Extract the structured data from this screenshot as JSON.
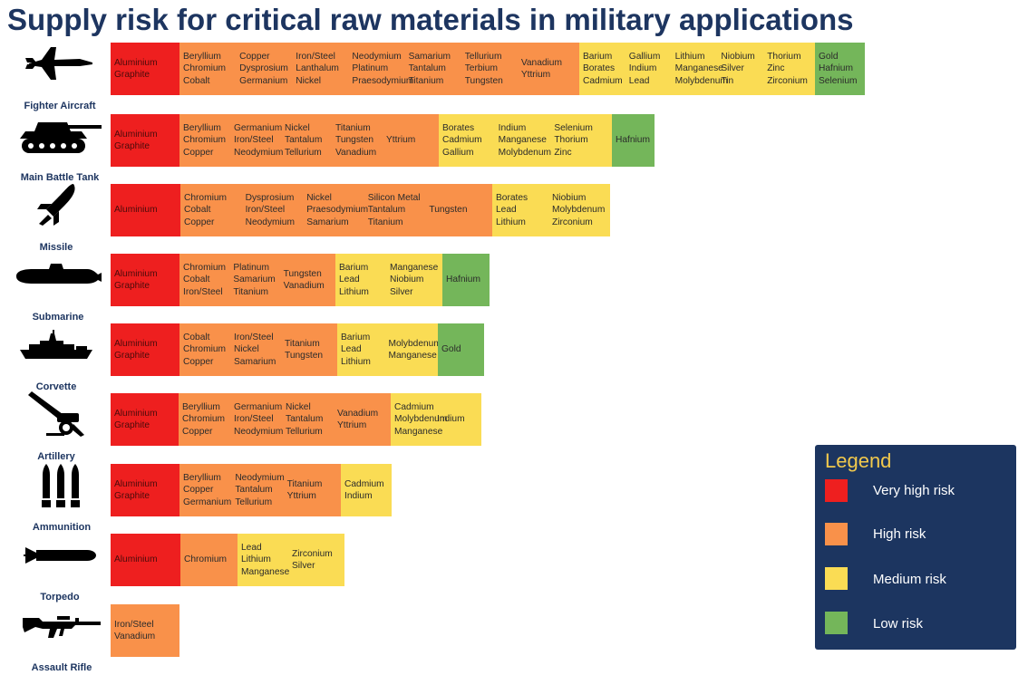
{
  "title": "Supply risk for critical raw materials in military applications",
  "risk_colors": {
    "very_high": "#ee1f1f",
    "high": "#f9914a",
    "medium": "#fadc54",
    "low": "#74b65a"
  },
  "legend": {
    "title": "Legend",
    "items": [
      {
        "risk": "very_high",
        "label": "Very high risk"
      },
      {
        "risk": "high",
        "label": "High risk"
      },
      {
        "risk": "medium",
        "label": "Medium risk"
      },
      {
        "risk": "low",
        "label": "Low risk"
      }
    ]
  },
  "rows": [
    {
      "label": "Fighter Aircraft",
      "icon": "fighter-jet-icon",
      "segments": [
        {
          "risk": "very_high",
          "columns": [
            [
              "Aluminium",
              "Graphite"
            ]
          ]
        },
        {
          "risk": "high",
          "columns": [
            [
              "Beryllium",
              "Chromium",
              "Cobalt"
            ],
            [
              "Copper",
              "Dysprosium",
              "Germanium"
            ],
            [
              "Iron/Steel",
              "Lanthalum",
              "Nickel"
            ],
            [
              "Neodymium",
              "Platinum",
              "Praesodymium"
            ],
            [
              "Samarium",
              "Tantalum",
              "Titanium"
            ],
            [
              "Tellurium",
              "Terbium",
              "Tungsten"
            ],
            [
              "Vanadium",
              "Yttrium"
            ]
          ]
        },
        {
          "risk": "medium",
          "columns": [
            [
              "Barium",
              "Borates",
              "Cadmium"
            ],
            [
              "Gallium",
              "Indium",
              "Lead"
            ],
            [
              "Lithium",
              "Manganese",
              "Molybdenum"
            ],
            [
              "Niobium",
              "Silver",
              "Tin"
            ],
            [
              "Thorium",
              "Zinc",
              "Zirconium"
            ]
          ]
        },
        {
          "risk": "low",
          "columns": [
            [
              "Gold",
              "Hafnium",
              "Selenium"
            ]
          ]
        }
      ]
    },
    {
      "label": "Main Battle Tank",
      "icon": "tank-icon",
      "segments": [
        {
          "risk": "very_high",
          "columns": [
            [
              "Aluminium",
              "Graphite"
            ]
          ]
        },
        {
          "risk": "high",
          "columns": [
            [
              "Beryllium",
              "Chromium",
              "Copper"
            ],
            [
              "Germanium",
              "Iron/Steel",
              "Neodymium"
            ],
            [
              "Nickel",
              "Tantalum",
              "Tellurium"
            ],
            [
              "Titanium",
              "Tungsten",
              "Vanadium"
            ],
            [
              "Yttrium"
            ]
          ]
        },
        {
          "risk": "medium",
          "columns": [
            [
              "Borates",
              "Cadmium",
              "Gallium"
            ],
            [
              "Indium",
              "Manganese",
              "Molybdenum"
            ],
            [
              "Selenium",
              "Thorium",
              "Zinc"
            ]
          ]
        },
        {
          "risk": "low",
          "columns": [
            [
              "Hafnium"
            ]
          ]
        }
      ]
    },
    {
      "label": "Missile",
      "icon": "missile-icon",
      "segments": [
        {
          "risk": "very_high",
          "columns": [
            [
              "Aluminium"
            ]
          ]
        },
        {
          "risk": "high",
          "columns": [
            [
              "Chromium",
              "Cobalt",
              "Copper"
            ],
            [
              "Dysprosium",
              "Iron/Steel",
              "Neodymium"
            ],
            [
              "Nickel",
              "Praesodymium",
              "Samarium"
            ],
            [
              "Silicon Metal",
              "Tantalum",
              "Titanium"
            ],
            [
              "Tungsten"
            ]
          ]
        },
        {
          "risk": "medium",
          "columns": [
            [
              "Borates",
              "Lead",
              "Lithium"
            ],
            [
              "Niobium",
              "Molybdenum",
              "Zirconium"
            ]
          ]
        }
      ]
    },
    {
      "label": "Submarine",
      "icon": "submarine-icon",
      "segments": [
        {
          "risk": "very_high",
          "columns": [
            [
              "Aluminium",
              "Graphite"
            ]
          ]
        },
        {
          "risk": "high",
          "columns": [
            [
              "Chromium",
              "Cobalt",
              "Iron/Steel"
            ],
            [
              "Platinum",
              "Samarium",
              "Titanium"
            ],
            [
              "Tungsten",
              "Vanadium"
            ]
          ]
        },
        {
          "risk": "medium",
          "columns": [
            [
              "Barium",
              "Lead",
              "Lithium"
            ],
            [
              "Manganese",
              "Niobium",
              "Silver"
            ]
          ]
        },
        {
          "risk": "low",
          "columns": [
            [
              "Hafnium"
            ]
          ]
        }
      ]
    },
    {
      "label": "Corvette",
      "icon": "warship-icon",
      "segments": [
        {
          "risk": "very_high",
          "columns": [
            [
              "Aluminium",
              "Graphite"
            ]
          ]
        },
        {
          "risk": "high",
          "columns": [
            [
              "Cobalt",
              "Chromium",
              "Copper"
            ],
            [
              "Iron/Steel",
              "Nickel",
              "Samarium"
            ],
            [
              "Titanium",
              "Tungsten"
            ]
          ]
        },
        {
          "risk": "medium",
          "columns": [
            [
              "Barium",
              "Lead",
              "Lithium"
            ],
            [
              "Molybdenum",
              "Manganese"
            ]
          ]
        },
        {
          "risk": "low",
          "columns": [
            [
              "Gold"
            ]
          ]
        }
      ]
    },
    {
      "label": "Artillery",
      "icon": "artillery-icon",
      "segments": [
        {
          "risk": "very_high",
          "columns": [
            [
              "Aluminium",
              "Graphite"
            ]
          ]
        },
        {
          "risk": "high",
          "columns": [
            [
              "Beryllium",
              "Chromium",
              "Copper"
            ],
            [
              "Germanium",
              "Iron/Steel",
              "Neodymium"
            ],
            [
              "Nickel",
              "Tantalum",
              "Tellurium"
            ],
            [
              "Vanadium",
              "Yttrium"
            ]
          ]
        },
        {
          "risk": "medium",
          "columns": [
            [
              "Cadmium",
              "Molybdenum",
              "Manganese"
            ],
            [
              "Indium"
            ]
          ]
        }
      ]
    },
    {
      "label": "Ammunition",
      "icon": "ammunition-icon",
      "segments": [
        {
          "risk": "very_high",
          "columns": [
            [
              "Aluminium",
              "Graphite"
            ]
          ]
        },
        {
          "risk": "high",
          "columns": [
            [
              "Beryllium",
              "Copper",
              "Germanium"
            ],
            [
              "Neodymium",
              "Tantalum",
              "Tellurium"
            ],
            [
              "Titanium",
              "Yttrium"
            ]
          ]
        },
        {
          "risk": "medium",
          "columns": [
            [
              "Cadmium",
              "Indium"
            ]
          ]
        }
      ]
    },
    {
      "label": "Torpedo",
      "icon": "torpedo-icon",
      "segments": [
        {
          "risk": "very_high",
          "columns": [
            [
              "Aluminium"
            ]
          ]
        },
        {
          "risk": "high",
          "columns": [
            [
              "Chromium"
            ]
          ]
        },
        {
          "risk": "medium",
          "columns": [
            [
              "Lead",
              "Lithium",
              "Manganese"
            ],
            [
              "Zirconium",
              "Silver"
            ]
          ]
        }
      ]
    },
    {
      "label": "Assault Rifle",
      "icon": "rifle-icon",
      "segments": [
        {
          "risk": "high",
          "columns": [
            [
              "Iron/Steel",
              "Vanadium"
            ]
          ]
        }
      ]
    }
  ]
}
